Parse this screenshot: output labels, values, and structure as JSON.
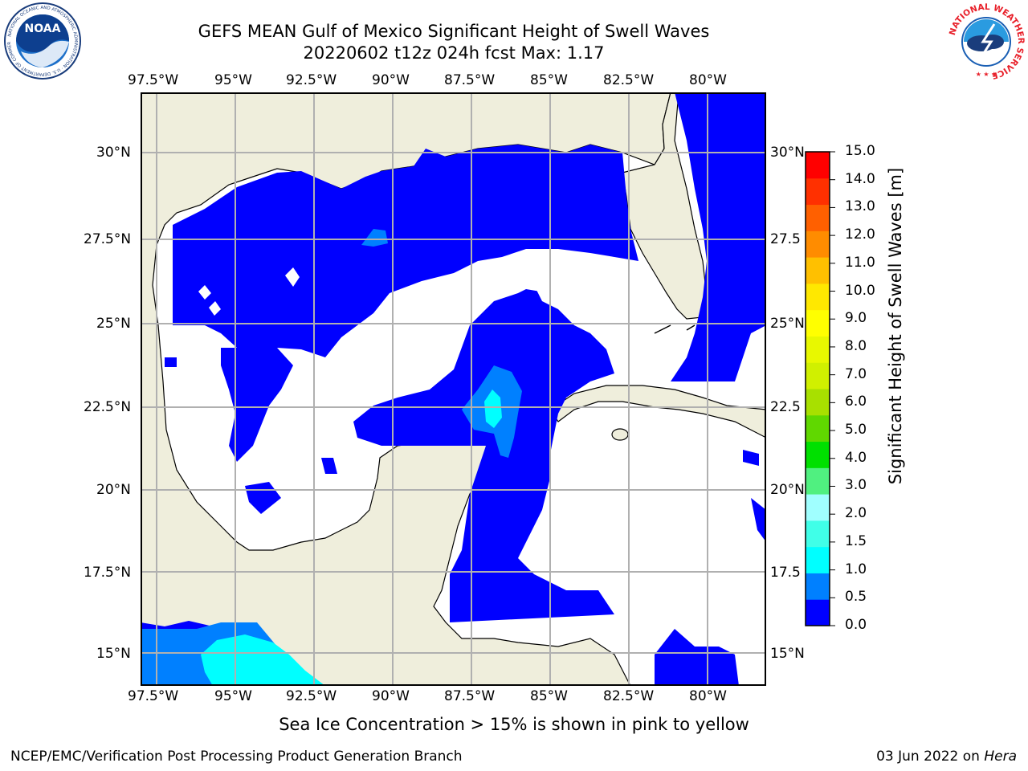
{
  "title_line1": "GEFS MEAN Gulf of Mexico Significant Height of Swell Waves",
  "title_line2": "20220602 t12z 024h fcst   Max: 1.17",
  "lon_labels": [
    "97.5°W",
    "95°W",
    "92.5°W",
    "90°W",
    "87.5°W",
    "85°W",
    "82.5°W",
    "80°W"
  ],
  "lat_labels_left": [
    "30°N",
    "27.5°N",
    "25°N",
    "22.5°N",
    "20°N",
    "17.5°N",
    "15°N"
  ],
  "lat_labels_right": [
    "30°N",
    "27.5",
    "25°N",
    "22.5",
    "20°N",
    "17.5",
    "15°N"
  ],
  "colorbar": {
    "label": "Significant Height of Swell Waves [m]",
    "ticks": [
      "15.0",
      "14.0",
      "13.0",
      "12.0",
      "11.0",
      "10.0",
      "9.0",
      "8.0",
      "7.0",
      "6.0",
      "5.0",
      "4.0",
      "3.0",
      "2.0",
      "1.5",
      "1.0",
      "0.5",
      "0.0"
    ],
    "colors": [
      "#0000ff",
      "#0080ff",
      "#00ffff",
      "#40ffe8",
      "#a0ffff",
      "#50f080",
      "#00e000",
      "#60d800",
      "#a8e000",
      "#d0f000",
      "#e8f800",
      "#ffff00",
      "#ffe800",
      "#ffc000",
      "#ff8c00",
      "#ff6000",
      "#ff3000",
      "#ff0000"
    ]
  },
  "ice_note": "Sea Ice Concentration > 15% is shown in pink to yellow",
  "footer_left": "NCEP/EMC/Verification Post Processing Product Generation Branch",
  "footer_date": "03 Jun 2022 on ",
  "footer_machine": "Hera",
  "logos": {
    "noaa": "NOAA",
    "noaa_ring": "NATIONAL OCEANIC AND ATMOSPHERIC ADMINISTRATION · U.S. DEPARTMENT OF COMMERCE",
    "nws_ring": "NATIONAL WEATHER SERVICE"
  },
  "map_colors": {
    "land": "#efeedc",
    "swell_0_05": "#0000ff",
    "swell_05_1": "#0080ff",
    "swell_1_15": "#00ffff",
    "grid": "#b0b0b0"
  }
}
